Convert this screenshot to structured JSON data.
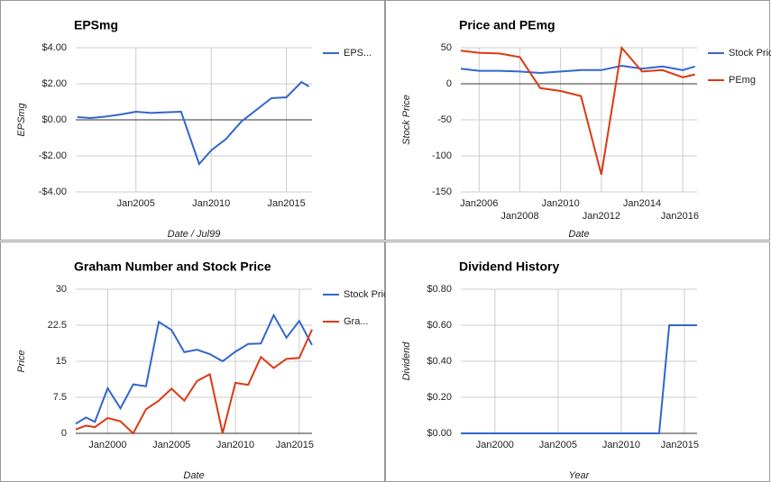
{
  "chart_data": [
    {
      "type": "line",
      "title": "EPSmg",
      "x_label": "Date / Jul99",
      "y_label": "EPSmg",
      "x": [
        2001.1,
        2002,
        2003,
        2004,
        2005,
        2006,
        2007,
        2008,
        2009.2,
        2010,
        2011,
        2012,
        2013,
        2014,
        2015,
        2016,
        2016.5
      ],
      "series": [
        {
          "name": "EPS...",
          "color": "#3366cc",
          "values": [
            0.15,
            0.1,
            0.18,
            0.3,
            0.45,
            0.38,
            0.42,
            0.45,
            -2.45,
            -1.7,
            -1.05,
            -0.1,
            0.55,
            1.2,
            1.25,
            2.1,
            1.85
          ]
        }
      ],
      "xlim": [
        2001,
        2016.7
      ],
      "xticks": [
        {
          "value": 2005,
          "label": "Jan2005"
        },
        {
          "value": 2010,
          "label": "Jan2010"
        },
        {
          "value": 2015,
          "label": "Jan2015"
        }
      ],
      "ylim": [
        -4,
        4
      ],
      "yticks": [
        {
          "value": 4,
          "label": "$4.00"
        },
        {
          "value": 2,
          "label": "$2.00"
        },
        {
          "value": 0,
          "label": "$0.00"
        },
        {
          "value": -2,
          "label": "-$2.00"
        },
        {
          "value": -4,
          "label": "-$4.00"
        }
      ],
      "grid": true,
      "legend": "right"
    },
    {
      "type": "line",
      "title": "Price and PEmg",
      "x_label": "Date",
      "y_label": "Stock Price",
      "x": [
        2005.1,
        2006,
        2007,
        2008,
        2009,
        2010,
        2011,
        2012,
        2013,
        2014,
        2015,
        2016,
        2016.6
      ],
      "series": [
        {
          "name": "Stock Price",
          "color": "#3366cc",
          "values": [
            21,
            18,
            18,
            17,
            15,
            17,
            19,
            19,
            25,
            21,
            24,
            19,
            24
          ]
        },
        {
          "name": "PEmg",
          "color": "#dc3912",
          "values": [
            46,
            43,
            42,
            37,
            -6,
            -10,
            -17,
            -126,
            50,
            17,
            19,
            9,
            13
          ]
        }
      ],
      "xlim": [
        2005.1,
        2016.7
      ],
      "xticks": [
        {
          "value": 2006,
          "label": "Jan2006"
        },
        {
          "value": 2008,
          "label": "Jan2008"
        },
        {
          "value": 2010,
          "label": "Jan2010"
        },
        {
          "value": 2012,
          "label": "Jan2012"
        },
        {
          "value": 2014,
          "label": "Jan2014"
        },
        {
          "value": 2016,
          "label": "Jan2016"
        }
      ],
      "ylim": [
        -150,
        50
      ],
      "yticks": [
        50,
        0,
        -50,
        -100,
        -150
      ],
      "grid": true,
      "legend": "right"
    },
    {
      "type": "line",
      "title": "Graham Number and Stock Price",
      "x_label": "Date",
      "y_label": "Price",
      "x": [
        1997.5,
        1998.3,
        1999,
        2000,
        2001,
        2002,
        2003,
        2004,
        2005,
        2006,
        2007,
        2008,
        2009,
        2010,
        2011,
        2012,
        2013,
        2014,
        2015,
        2016
      ],
      "series": [
        {
          "name": "Stock Price",
          "color": "#3366cc",
          "values": [
            2,
            3.3,
            2.4,
            9.4,
            5.2,
            10.2,
            9.8,
            23.2,
            21.5,
            16.9,
            17.4,
            16.5,
            15,
            17,
            18.6,
            18.7,
            24.6,
            19.9,
            23.4,
            18.4
          ]
        },
        {
          "name": "Gra...",
          "color": "#dc3912",
          "values": [
            0.8,
            1.6,
            1.3,
            3.2,
            2.5,
            0,
            5,
            6.8,
            9.3,
            6.8,
            10.9,
            12.3,
            0,
            10.5,
            10.1,
            15.9,
            13.6,
            15.5,
            15.7,
            21.6
          ]
        }
      ],
      "xlim": [
        1997.5,
        2016
      ],
      "xticks": [
        {
          "value": 2000,
          "label": "Jan2000"
        },
        {
          "value": 2005,
          "label": "Jan2005"
        },
        {
          "value": 2010,
          "label": "Jan2010"
        },
        {
          "value": 2015,
          "label": "Jan2015"
        }
      ],
      "ylim": [
        0,
        30
      ],
      "yticks": [
        30,
        22.5,
        15,
        7.5,
        0
      ],
      "grid": true,
      "legend": "right"
    },
    {
      "type": "line",
      "title": "Dividend History",
      "x_label": "Year",
      "y_label": "Dividend",
      "x": [
        1997.3,
        2013,
        2013.8,
        2016
      ],
      "series": [
        {
          "color": "#3366cc",
          "values": [
            0,
            0,
            0.6,
            0.6
          ]
        }
      ],
      "xlim": [
        1997.3,
        2016
      ],
      "xticks": [
        {
          "value": 2000,
          "label": "Jan2000"
        },
        {
          "value": 2005,
          "label": "Jan2005"
        },
        {
          "value": 2010,
          "label": "Jan2010"
        },
        {
          "value": 2015,
          "label": "Jan2015"
        }
      ],
      "ylim": [
        0,
        0.8
      ],
      "yticks": [
        {
          "value": 0.8,
          "label": "$0.80"
        },
        {
          "value": 0.6,
          "label": "$0.60"
        },
        {
          "value": 0.4,
          "label": "$0.40"
        },
        {
          "value": 0.2,
          "label": "$0.20"
        },
        {
          "value": 0,
          "label": "$0.00"
        }
      ],
      "grid": true
    }
  ]
}
